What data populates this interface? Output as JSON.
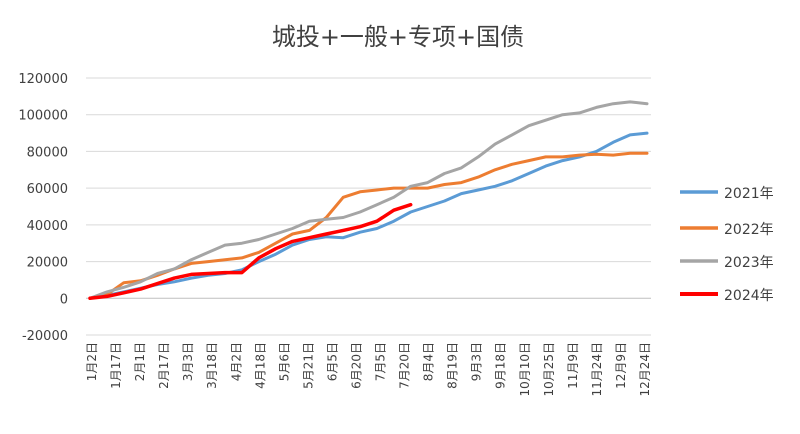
{
  "chart_data": {
    "type": "line",
    "title": "城投+一般+专项+国债",
    "xlabel": "",
    "ylabel": "",
    "ylim": [
      -20000,
      120000
    ],
    "yticks": [
      -20000,
      0,
      20000,
      40000,
      60000,
      80000,
      100000,
      120000
    ],
    "ytick_labels": [
      "-20000",
      "0",
      "20000",
      "40000",
      "60000",
      "80000",
      "100000",
      "120000"
    ],
    "x_tick_labels": [
      "1月2日",
      "1月17日",
      "2月1日",
      "2月17日",
      "3月3日",
      "3月18日",
      "4月2日",
      "4月18日",
      "5月6日",
      "5月21日",
      "6月5日",
      "6月20日",
      "7月5日",
      "7月20日",
      "8月4日",
      "8月19日",
      "9月3日",
      "9月18日",
      "10月10日",
      "10月25日",
      "11月9日",
      "11月24日",
      "12月9日",
      "12月24日"
    ],
    "grid": true,
    "legend_position": "right",
    "series": [
      {
        "name": "2021年",
        "color": "#5b9bd5",
        "values": [
          0,
          1500,
          3500,
          5500,
          7500,
          9000,
          11000,
          12500,
          13500,
          15500,
          20000,
          24000,
          29000,
          32000,
          33500,
          33000,
          36000,
          38000,
          42000,
          47000,
          50000,
          53000,
          57000,
          59000,
          61000,
          64000,
          68000,
          72000,
          75000,
          77000,
          80000,
          85000,
          89000,
          90000
        ]
      },
      {
        "name": "2022年",
        "color": "#ed7d31",
        "values": [
          0,
          2000,
          8500,
          9500,
          12500,
          16000,
          19000,
          20000,
          21000,
          22000,
          25000,
          30000,
          35000,
          37000,
          44000,
          55000,
          58000,
          59000,
          60000,
          60000,
          60000,
          62000,
          63000,
          66000,
          70000,
          73000,
          75000,
          77000,
          77000,
          78000,
          78500,
          78000,
          79000,
          79000
        ]
      },
      {
        "name": "2023年",
        "color": "#a5a5a5",
        "values": [
          0,
          3500,
          6000,
          9000,
          13500,
          16000,
          21000,
          25000,
          29000,
          30000,
          32000,
          35000,
          38000,
          42000,
          43000,
          44000,
          47000,
          51000,
          55000,
          61000,
          63000,
          68000,
          71000,
          77000,
          84000,
          89000,
          94000,
          97000,
          100000,
          101000,
          104000,
          106000,
          107000,
          106000
        ]
      },
      {
        "name": "2024年",
        "color": "#ff0000",
        "values": [
          0,
          1000,
          3000,
          5000,
          8000,
          11000,
          13000,
          13500,
          14000,
          14000,
          22000,
          27000,
          31000,
          33000,
          35000,
          37000,
          39000,
          42000,
          48000,
          51000
        ]
      }
    ]
  }
}
